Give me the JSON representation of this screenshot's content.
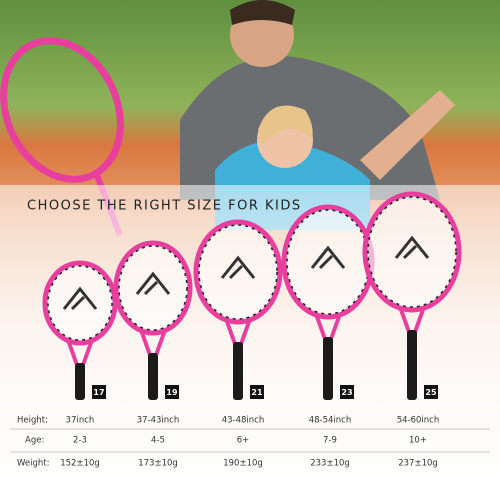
{
  "header": {
    "title": "CHOOSE THE RIGHT SIZE FOR KIDS"
  },
  "sizes": [
    17,
    19,
    21,
    23,
    25
  ],
  "table": {
    "rows": [
      [
        "Height:",
        "37inch",
        "37-43inch",
        "43-48inch",
        "48-54inch",
        "54-60inch"
      ],
      [
        "Age:",
        "2-3",
        "4-5",
        "6+",
        "7-9",
        "10+"
      ],
      [
        "Weight:",
        "152±10g",
        "173±10g",
        "190±10g",
        "233±10g",
        "237±10g"
      ]
    ]
  }
}
